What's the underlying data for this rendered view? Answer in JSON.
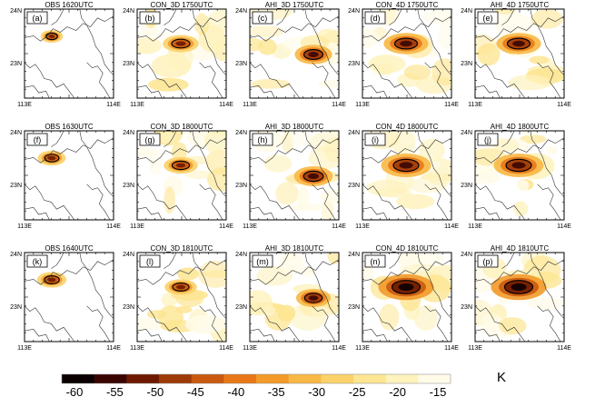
{
  "figure": {
    "rows": [
      {
        "panels": [
          {
            "title": "OBS 1620UTC",
            "tag": "(a)",
            "mode": "obs",
            "intensity": 0.25
          },
          {
            "title": "CON_3D 1750UTC",
            "tag": "(b)",
            "mode": "con3",
            "intensity": 0.35
          },
          {
            "title": "AHI_3D 1750UTC",
            "tag": "(c)",
            "mode": "ahi3",
            "intensity": 0.65
          },
          {
            "title": "CON_4D 1750UTC",
            "tag": "(d)",
            "mode": "con4",
            "intensity": 0.6
          },
          {
            "title": "AHI_4D 1750UTC",
            "tag": "(e)",
            "mode": "ahi4",
            "intensity": 0.6
          }
        ]
      },
      {
        "panels": [
          {
            "title": "OBS 1630UTC",
            "tag": "(f)",
            "mode": "obs",
            "intensity": 0.45
          },
          {
            "title": "CON_3D 1800UTC",
            "tag": "(g)",
            "mode": "con3",
            "intensity": 0.3
          },
          {
            "title": "AHI_3D 1800UTC",
            "tag": "(h)",
            "mode": "ahi3",
            "intensity": 0.7
          },
          {
            "title": "CON_4D 1800UTC",
            "tag": "(i)",
            "mode": "con4",
            "intensity": 0.75
          },
          {
            "title": "AHI_4D 1800UTC",
            "tag": "(j)",
            "mode": "ahi4",
            "intensity": 0.75
          }
        ]
      },
      {
        "panels": [
          {
            "title": "OBS 1640UTC",
            "tag": "(k)",
            "mode": "obs",
            "intensity": 0.5
          },
          {
            "title": "CON_3D 1810UTC",
            "tag": "(l)",
            "mode": "con3",
            "intensity": 0.25
          },
          {
            "title": "AHI_3D 1810UTC",
            "tag": "(m)",
            "mode": "ahi3",
            "intensity": 0.55
          },
          {
            "title": "CON_4D 1810UTC",
            "tag": "(n)",
            "mode": "con4",
            "intensity": 0.9
          },
          {
            "title": "AHI_4D 1810UTC",
            "tag": "(p)",
            "mode": "ahi4",
            "intensity": 0.9
          }
        ]
      }
    ],
    "lat_top": "24N",
    "lat_bottom": "23N",
    "lon_left": "113E",
    "lon_right": "114E"
  },
  "colorbar": {
    "ticks": [
      "-60",
      "-55",
      "-50",
      "-45",
      "-40",
      "-35",
      "-30",
      "-25",
      "-20",
      "-15"
    ],
    "unit": "K",
    "colors": [
      "#0a0000",
      "#3a0500",
      "#6e1a00",
      "#9e3a08",
      "#c95a10",
      "#e87818",
      "#f39a2a",
      "#f8b845",
      "#fbd26a",
      "#fde591",
      "#fef2bd",
      "#fffbe8"
    ]
  }
}
